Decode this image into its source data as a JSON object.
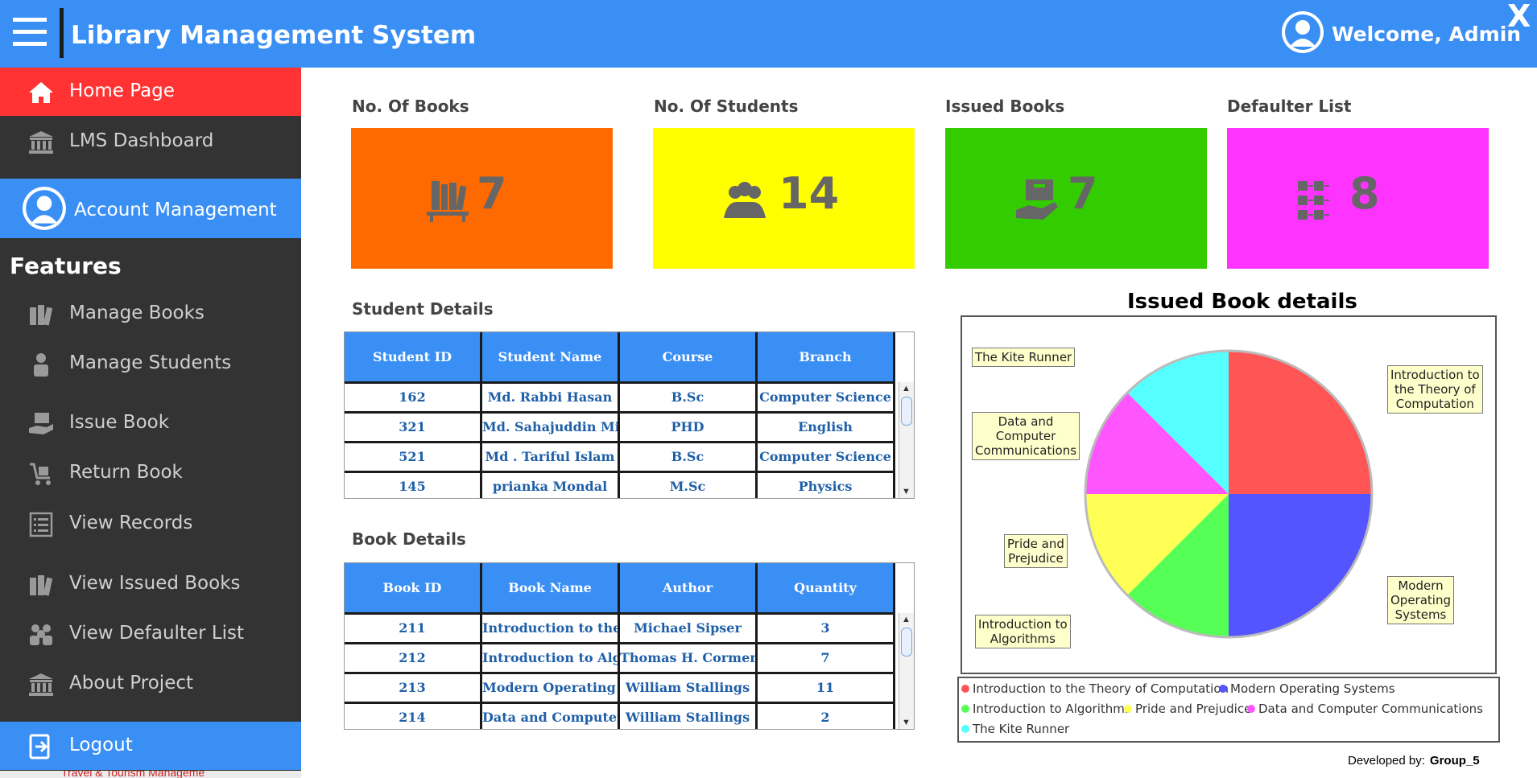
{
  "header": {
    "title": "Library Management System",
    "welcome": "Welcome, Admin",
    "close_label": "X"
  },
  "sidebar": {
    "home": "Home Page",
    "dashboard": "LMS Dashboard",
    "account": "Account Management",
    "features_heading": "Features",
    "items": [
      {
        "label": "Manage Books",
        "icon": "books-icon"
      },
      {
        "label": "Manage Students",
        "icon": "student-icon"
      },
      {
        "label": "Issue Book",
        "icon": "issue-book-icon"
      },
      {
        "label": "Return Book",
        "icon": "return-book-icon"
      },
      {
        "label": "View Records",
        "icon": "records-icon"
      },
      {
        "label": "View Issued Books",
        "icon": "issued-books-icon"
      },
      {
        "label": "View Defaulter List",
        "icon": "defaulter-icon"
      },
      {
        "label": "About Project",
        "icon": "bank-icon"
      }
    ],
    "logout": "Logout",
    "taskbar_text": "Travel & Tourism Manageme"
  },
  "cards": [
    {
      "title": "No. Of Books",
      "value": "7",
      "color": "#ff6a00",
      "icon": "bookshelf-icon"
    },
    {
      "title": "No. Of Students",
      "value": "14",
      "color": "#ffff00",
      "icon": "users-group-icon"
    },
    {
      "title": "Issued Books",
      "value": "7",
      "color": "#33cc00",
      "icon": "hand-book-icon"
    },
    {
      "title": "Defaulter List",
      "value": "8",
      "color": "#ff33ff",
      "icon": "list-grid-icon"
    }
  ],
  "students": {
    "title": "Student Details",
    "columns": [
      "Student ID",
      "Student Name",
      "Course",
      "Branch"
    ],
    "rows": [
      [
        "162",
        "Md. Rabbi Hasan",
        "B.Sc",
        "Computer Science"
      ],
      [
        "321",
        "Md. Sahajuddin Mia",
        "PHD",
        "English"
      ],
      [
        "521",
        "Md . Tariful Islam",
        "B.Sc",
        "Computer Science"
      ],
      [
        "145",
        "prianka Mondal",
        "M.Sc",
        "Physics"
      ]
    ]
  },
  "books": {
    "title": "Book Details",
    "columns": [
      "Book ID",
      "Book Name",
      "Author",
      "Quantity"
    ],
    "rows": [
      [
        "211",
        "Introduction to the T...",
        "Michael Sipser",
        "3"
      ],
      [
        "212",
        "Introduction to Algo...",
        "Thomas H. Cormen",
        "7"
      ],
      [
        "213",
        "Modern Operating S...",
        "William Stallings",
        "11"
      ],
      [
        "214",
        "Data and Computer C...",
        "William Stallings",
        "2"
      ]
    ]
  },
  "chart": {
    "title": "Issued Book details",
    "slices": [
      {
        "label": "Introduction to the Theory of Computation",
        "callout": [
          "Introduction to",
          "the Theory of",
          "Computation"
        ],
        "value": 1,
        "color": "#ff5555"
      },
      {
        "label": "Modern Operating Systems",
        "callout": [
          "Modern",
          "Operating",
          "Systems"
        ],
        "value": 1,
        "color": "#5555ff"
      },
      {
        "label": "Introduction to Algorithms",
        "callout": [
          "Introduction to",
          "Algorithms"
        ],
        "value": 0.5,
        "color": "#55ff55"
      },
      {
        "label": "Pride and Prejudice",
        "callout": [
          "Pride and",
          "Prejudice"
        ],
        "value": 0.5,
        "color": "#ffff55"
      },
      {
        "label": "Data and Computer Communications",
        "callout": [
          "Data and",
          "Computer",
          "Communications"
        ],
        "value": 0.5,
        "color": "#ff55ff"
      },
      {
        "label": "The Kite Runner",
        "callout": [
          "The Kite Runner"
        ],
        "value": 0.5,
        "color": "#55ffff"
      }
    ]
  },
  "footer": {
    "developed_by": "Developed by:",
    "group": "Group_5"
  }
}
